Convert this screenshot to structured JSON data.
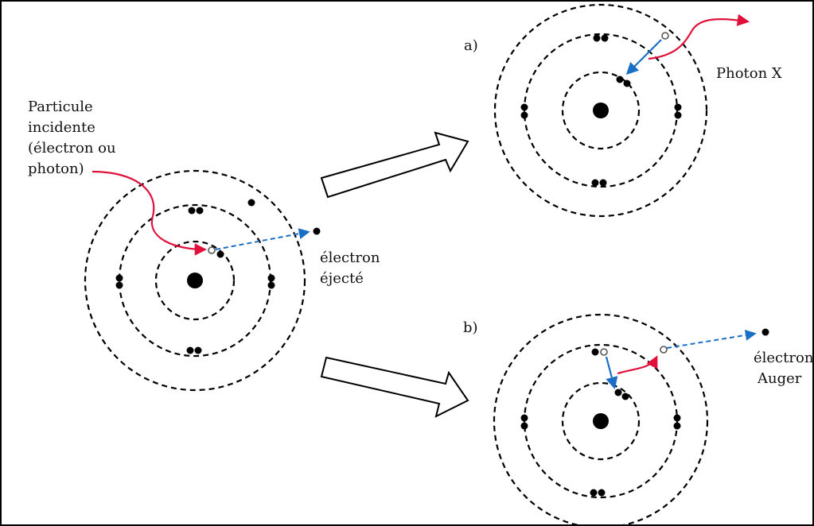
{
  "labels": {
    "incident_line1": "Particule",
    "incident_line2": "incidente",
    "incident_line3": "(électron ou",
    "incident_line4": "photon)",
    "ejected_line1": "électron",
    "ejected_line2": "éjecté",
    "path_a": "a)",
    "photon_x": "Photon X",
    "path_b": "b)",
    "auger_line1": "électron",
    "auger_line2": "Auger"
  },
  "colors": {
    "ink": "#000000",
    "incident_arrow": "#e0103a",
    "electron_arrow": "#1a6fc4",
    "frame": "#000000"
  }
}
